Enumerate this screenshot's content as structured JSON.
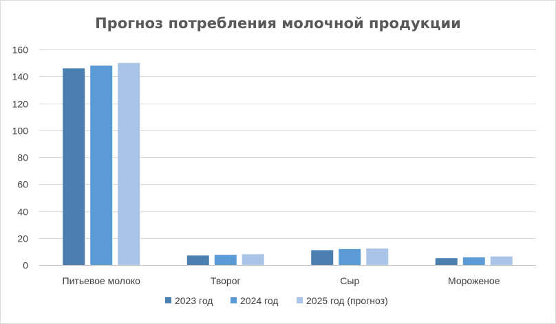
{
  "chart_data": {
    "type": "bar",
    "title": "Прогноз потребления молочной продукции",
    "xlabel": "",
    "ylabel": "",
    "ylim": [
      0,
      160
    ],
    "yticks": [
      0,
      20,
      40,
      60,
      80,
      100,
      120,
      140,
      160
    ],
    "grid": true,
    "legend_position": "bottom",
    "categories": [
      "Питьевое молоко",
      "Творог",
      "Сыр",
      "Мороженое"
    ],
    "series": [
      {
        "name": "2023 год",
        "color": "#4a7fb0",
        "values": [
          146,
          7,
          11,
          5
        ]
      },
      {
        "name": "2024 год",
        "color": "#5b9bd5",
        "values": [
          148,
          7.5,
          11.8,
          5.7
        ]
      },
      {
        "name": "2025 год (прогноз)",
        "color": "#a9c4e6",
        "values": [
          150,
          8,
          12.2,
          6.3
        ]
      }
    ]
  }
}
